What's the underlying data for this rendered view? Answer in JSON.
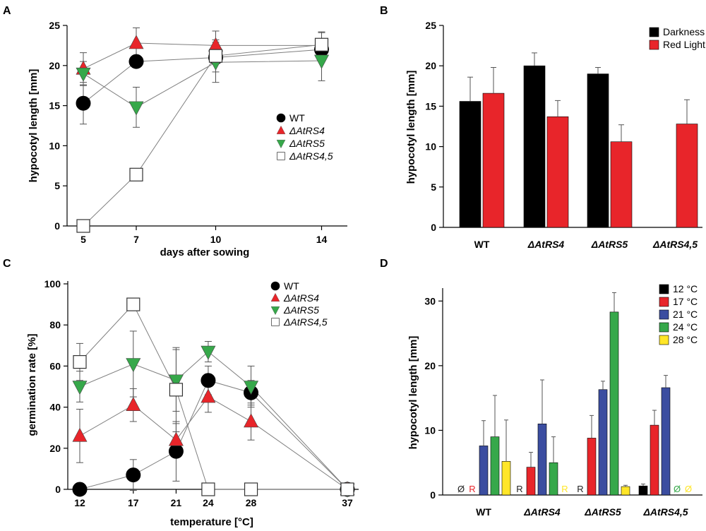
{
  "colors": {
    "black": "#000000",
    "red": "#e8252a",
    "green": "#36a84a",
    "blue": "#3b4da0",
    "yellow": "#ffe628",
    "white": "#ffffff"
  },
  "chart_data": [
    {
      "panel": "A",
      "type": "line",
      "xlabel": "days after sowing",
      "ylabel": "hypocotyl length [mm]",
      "x": [
        5,
        7,
        10,
        14
      ],
      "xticks": [
        "5",
        "7",
        "10",
        "14"
      ],
      "yticks": [
        "0",
        "5",
        "10",
        "15",
        "20",
        "25"
      ],
      "ylim": [
        0,
        25
      ],
      "series": [
        {
          "name": "WT",
          "marker": "circle",
          "color": "black",
          "values": [
            15.3,
            20.5,
            21.0,
            22.0
          ],
          "errors": [
            2.6,
            0,
            0,
            0
          ]
        },
        {
          "name": "ΔAtRS4",
          "marker": "triangle-up",
          "color": "red",
          "values": [
            19.6,
            22.8,
            22.5,
            22.5
          ],
          "errors": [
            2.0,
            1.9,
            1.8,
            1.6
          ]
        },
        {
          "name": "ΔAtRS5",
          "marker": "triangle-down",
          "color": "green",
          "values": [
            19.0,
            14.8,
            20.4,
            20.6
          ],
          "errors": [
            1.5,
            2.5,
            2.5,
            2.5
          ]
        },
        {
          "name": "ΔAtRS4,5",
          "marker": "square",
          "color": "white",
          "values": [
            0.0,
            6.4,
            21.2,
            22.6
          ],
          "errors": [
            0,
            0.6,
            2.0,
            1.6
          ]
        }
      ]
    },
    {
      "panel": "B",
      "type": "bar",
      "ylabel": "hypocotyl length [mm]",
      "categories": [
        "WT",
        "ΔAtRS4",
        "ΔAtRS5",
        "ΔAtRS4,5"
      ],
      "yticks": [
        "0",
        "5",
        "10",
        "15",
        "20",
        "25"
      ],
      "ylim": [
        0,
        25
      ],
      "series": [
        {
          "name": "Darkness",
          "color": "black",
          "values": [
            15.6,
            20.0,
            19.0,
            0
          ],
          "errors": [
            3.0,
            1.6,
            0.8,
            0
          ]
        },
        {
          "name": "Red Light",
          "color": "red",
          "values": [
            16.6,
            13.7,
            10.6,
            12.8
          ],
          "errors": [
            3.2,
            2.0,
            2.1,
            3.0
          ]
        }
      ]
    },
    {
      "panel": "C",
      "type": "line",
      "xlabel": "temperature [°C]",
      "ylabel": "germination rate [%]",
      "x": [
        12,
        17,
        21,
        24,
        28,
        37
      ],
      "xticks": [
        "12",
        "17",
        "21",
        "24",
        "28",
        "37"
      ],
      "yticks": [
        "0",
        "20",
        "40",
        "60",
        "80",
        "100"
      ],
      "ylim": [
        0,
        100
      ],
      "series": [
        {
          "name": "WT",
          "marker": "circle",
          "color": "black",
          "values": [
            0,
            7,
            18.5,
            53,
            47,
            0
          ],
          "errors": [
            0,
            7.5,
            14.5,
            7,
            6,
            0
          ]
        },
        {
          "name": "ΔAtRS4",
          "marker": "triangle-up",
          "color": "red",
          "values": [
            26,
            41,
            24,
            45,
            33,
            0
          ],
          "errors": [
            13,
            8,
            8,
            7.5,
            9,
            0
          ]
        },
        {
          "name": "ΔAtRS5",
          "marker": "triangle-down",
          "color": "green",
          "values": [
            50,
            61,
            53,
            67,
            50,
            0
          ],
          "errors": [
            7.5,
            16,
            15,
            5,
            10,
            0
          ]
        },
        {
          "name": "ΔAtRS4,5",
          "marker": "square",
          "color": "white",
          "values": [
            62,
            90,
            48.5,
            0,
            0,
            0
          ],
          "errors": [
            9,
            0,
            20.5,
            0,
            0,
            0
          ]
        }
      ]
    },
    {
      "panel": "D",
      "type": "bar",
      "ylabel": "hypocotyl length [mm]",
      "categories": [
        "WT",
        "ΔAtRS4",
        "ΔAtRS5",
        "ΔAtRS4,5"
      ],
      "yticks": [
        "0",
        "10",
        "20",
        "30"
      ],
      "ylim": [
        0,
        32
      ],
      "series": [
        {
          "name": "12 °C",
          "color": "black",
          "values": [
            0,
            0,
            0,
            1.4
          ],
          "errors": [
            0,
            0,
            0,
            0.3
          ],
          "notes": [
            "Ø",
            "R",
            "R",
            ""
          ]
        },
        {
          "name": "17 °C",
          "color": "red",
          "values": [
            0,
            4.3,
            8.8,
            10.8
          ],
          "errors": [
            0,
            2.3,
            3.5,
            2.3
          ],
          "notes": [
            "R",
            "",
            "",
            ""
          ]
        },
        {
          "name": "21 °C",
          "color": "blue",
          "values": [
            7.6,
            11.0,
            16.3,
            16.6
          ],
          "errors": [
            3.9,
            6.8,
            1.3,
            1.9
          ],
          "notes": [
            "",
            "",
            "",
            ""
          ]
        },
        {
          "name": "24 °C",
          "color": "green",
          "values": [
            9.0,
            5.0,
            28.3,
            0
          ],
          "errors": [
            6.4,
            4.0,
            3.0,
            0
          ],
          "notes": [
            "",
            "",
            "",
            "Ø"
          ]
        },
        {
          "name": "28 °C",
          "color": "yellow",
          "values": [
            5.2,
            0,
            1.3,
            0
          ],
          "errors": [
            6.4,
            0,
            0.2,
            0
          ],
          "notes": [
            "",
            "R",
            "",
            "Ø"
          ]
        }
      ]
    }
  ]
}
